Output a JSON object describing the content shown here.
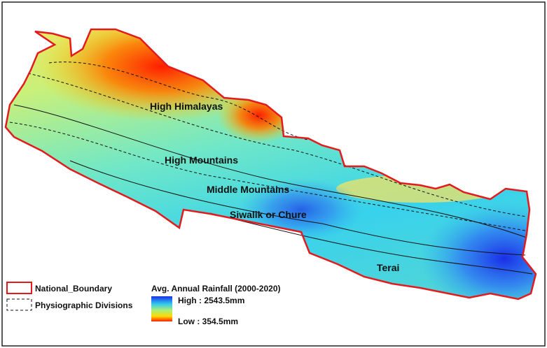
{
  "regions": [
    {
      "label": "High Himalayas"
    },
    {
      "label": "High Mountains"
    },
    {
      "label": "Middle Mountains"
    },
    {
      "label": "Siwalik or Chure"
    },
    {
      "label": "Terai"
    }
  ],
  "legend": {
    "items": [
      {
        "label": "National_Boundary"
      },
      {
        "label": "Physiographic Divisions"
      }
    ],
    "rainfall_title": "Avg. Annual Rainfall (2000-2020)",
    "high_label": "High : 2543.5mm",
    "low_label": "Low : 354.5mm"
  }
}
